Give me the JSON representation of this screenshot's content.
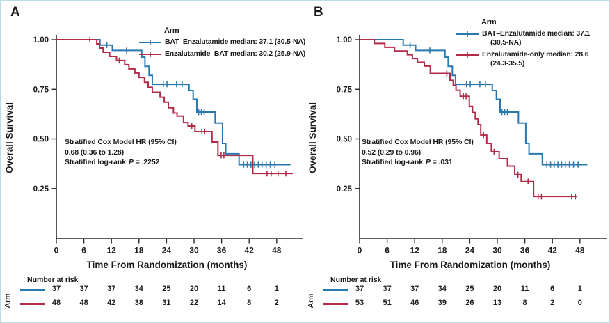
{
  "figure": {
    "border_color": "#b9dee1",
    "legend_title": "Arm",
    "risk_header": "Number at risk",
    "risk_axis_label": "Arm",
    "y_axis_label": "Overall Survival",
    "x_axis_label": "Time From Randomization (months)"
  },
  "colors": {
    "blue": "#2878ae",
    "red": "#b32a46",
    "axis": "#2a2a2a"
  },
  "panels": [
    {
      "letter": "A",
      "legend_entries": [
        {
          "color": "#2878ae",
          "lines": [
            "BAT–Enzalutamide median: 37.1 (30.5-NA)"
          ]
        },
        {
          "color": "#b32a46",
          "lines": [
            "Enzalutamide–BAT median: 30.2 (25.9-NA)"
          ]
        }
      ],
      "stats": {
        "line1": "Stratified Cox Model HR (95% CI)",
        "line2": "0.68 (0.36 to 1.28)",
        "line3_prefix": "Stratified log-rank",
        "line3_p": "P",
        "line3_value": "= .2252"
      }
    },
    {
      "letter": "B",
      "legend_entries": [
        {
          "color": "#2878ae",
          "lines": [
            "BAT–Enzalutamide median: 37.1",
            "(30.5-NA)"
          ]
        },
        {
          "color": "#b32a46",
          "lines": [
            "Enzalutamide-only median: 28.6",
            "(24.3-35.5)"
          ]
        }
      ],
      "stats": {
        "line1": "Stratified Cox Model HR (95% CI)",
        "line2": "0.52 (0.29 to 0.96)",
        "line3_prefix": "Stratified log-rank",
        "line3_p": "P",
        "line3_value": "= .031"
      }
    }
  ],
  "chart_data": [
    {
      "type": "line",
      "subtype": "kaplan-meier",
      "panel": "A",
      "xlabel": "Time From Randomization (months)",
      "ylabel": "Overall Survival",
      "xlim": [
        0,
        52
      ],
      "ylim": [
        0,
        1.0
      ],
      "x_ticks": [
        0,
        6,
        12,
        18,
        24,
        30,
        36,
        42,
        48
      ],
      "y_ticks": [
        1.0,
        0.75,
        0.5,
        0.25
      ],
      "y_tick_labels": [
        "1.00",
        "0.75",
        "0.50",
        "0.25"
      ],
      "grid": false,
      "legend_position": "top-right",
      "series": [
        {
          "name": "BAT–Enzalutamide",
          "median": "37.1 (30.5-NA)",
          "color": "#2878ae",
          "steps": [
            [
              0,
              1.0
            ],
            [
              9.5,
              0.973
            ],
            [
              12.2,
              0.946
            ],
            [
              18.6,
              0.912
            ],
            [
              19.3,
              0.866
            ],
            [
              20.2,
              0.82
            ],
            [
              20.9,
              0.775
            ],
            [
              28.9,
              0.744
            ],
            [
              29.8,
              0.7
            ],
            [
              30.6,
              0.635
            ],
            [
              34.6,
              0.58
            ],
            [
              36.2,
              0.477
            ],
            [
              36.9,
              0.425
            ],
            [
              39.8,
              0.37
            ],
            [
              51.0,
              0.37
            ]
          ],
          "censors": [
            [
              11.0,
              0.973
            ],
            [
              15.3,
              0.946
            ],
            [
              23.3,
              0.775
            ],
            [
              24.1,
              0.775
            ],
            [
              26.2,
              0.775
            ],
            [
              27.4,
              0.775
            ],
            [
              31.0,
              0.635
            ],
            [
              31.6,
              0.635
            ],
            [
              32.2,
              0.635
            ],
            [
              40.8,
              0.37
            ],
            [
              41.6,
              0.37
            ],
            [
              42.4,
              0.37
            ],
            [
              43.2,
              0.37
            ],
            [
              44.0,
              0.37
            ],
            [
              44.8,
              0.37
            ],
            [
              45.7,
              0.37
            ],
            [
              46.6,
              0.37
            ],
            [
              47.6,
              0.37
            ]
          ]
        },
        {
          "name": "Enzalutamide–BAT",
          "median": "30.2 (25.9-NA)",
          "color": "#b32a46",
          "steps": [
            [
              0,
              1.0
            ],
            [
              8.8,
              0.979
            ],
            [
              9.4,
              0.958
            ],
            [
              10.2,
              0.937
            ],
            [
              11.6,
              0.916
            ],
            [
              13.1,
              0.895
            ],
            [
              14.9,
              0.874
            ],
            [
              15.8,
              0.853
            ],
            [
              17.1,
              0.832
            ],
            [
              18.0,
              0.81
            ],
            [
              19.2,
              0.785
            ],
            [
              20.0,
              0.76
            ],
            [
              20.9,
              0.735
            ],
            [
              22.6,
              0.71
            ],
            [
              23.5,
              0.685
            ],
            [
              24.4,
              0.657
            ],
            [
              25.5,
              0.63
            ],
            [
              26.3,
              0.615
            ],
            [
              27.7,
              0.582
            ],
            [
              28.7,
              0.565
            ],
            [
              30.2,
              0.537
            ],
            [
              33.9,
              0.484
            ],
            [
              35.2,
              0.417
            ],
            [
              42.8,
              0.326
            ],
            [
              51.5,
              0.326
            ]
          ],
          "censors": [
            [
              7.3,
              1.0
            ],
            [
              13.7,
              0.895
            ],
            [
              29.5,
              0.565
            ],
            [
              31.7,
              0.537
            ],
            [
              32.3,
              0.537
            ],
            [
              35.9,
              0.417
            ],
            [
              36.5,
              0.417
            ],
            [
              45.9,
              0.326
            ],
            [
              46.8,
              0.326
            ],
            [
              48.3,
              0.326
            ],
            [
              50.0,
              0.326
            ]
          ]
        }
      ],
      "number_at_risk": {
        "months": [
          0,
          6,
          12,
          18,
          24,
          30,
          36,
          42,
          48
        ],
        "rows": [
          {
            "arm": "BAT–Enzalutamide",
            "color": "#2878ae",
            "counts": [
              37,
              37,
              37,
              34,
              25,
              20,
              11,
              6,
              1
            ]
          },
          {
            "arm": "Enzalutamide–BAT",
            "color": "#b32a46",
            "counts": [
              48,
              48,
              42,
              38,
              31,
              22,
              14,
              8,
              2
            ]
          }
        ]
      }
    },
    {
      "type": "line",
      "subtype": "kaplan-meier",
      "panel": "B",
      "xlabel": "Time From Randomization (months)",
      "ylabel": "Overall Survival",
      "xlim": [
        0,
        52
      ],
      "ylim": [
        0,
        1.0
      ],
      "x_ticks": [
        0,
        6,
        12,
        18,
        24,
        30,
        36,
        42,
        48
      ],
      "y_ticks": [
        1.0,
        0.75,
        0.5,
        0.25
      ],
      "y_tick_labels": [
        "1.00",
        "0.75",
        "0.50",
        "0.25"
      ],
      "grid": false,
      "legend_position": "top-right",
      "series": [
        {
          "name": "BAT–Enzalutamide",
          "median": "37.1 (30.5-NA)",
          "color": "#2878ae",
          "steps": [
            [
              0,
              1.0
            ],
            [
              9.5,
              0.973
            ],
            [
              12.2,
              0.946
            ],
            [
              18.6,
              0.912
            ],
            [
              19.3,
              0.866
            ],
            [
              20.2,
              0.82
            ],
            [
              20.9,
              0.775
            ],
            [
              28.9,
              0.744
            ],
            [
              29.8,
              0.7
            ],
            [
              30.6,
              0.635
            ],
            [
              34.6,
              0.58
            ],
            [
              36.2,
              0.477
            ],
            [
              36.9,
              0.425
            ],
            [
              39.8,
              0.37
            ],
            [
              49.6,
              0.37
            ]
          ],
          "censors": [
            [
              11.0,
              0.973
            ],
            [
              15.3,
              0.946
            ],
            [
              23.3,
              0.775
            ],
            [
              24.1,
              0.775
            ],
            [
              26.2,
              0.775
            ],
            [
              27.4,
              0.775
            ],
            [
              31.0,
              0.635
            ],
            [
              31.6,
              0.635
            ],
            [
              32.2,
              0.635
            ],
            [
              40.8,
              0.37
            ],
            [
              41.6,
              0.37
            ],
            [
              42.4,
              0.37
            ],
            [
              43.2,
              0.37
            ],
            [
              44.0,
              0.37
            ],
            [
              44.8,
              0.37
            ],
            [
              45.7,
              0.37
            ],
            [
              46.6,
              0.37
            ],
            [
              47.6,
              0.37
            ]
          ]
        },
        {
          "name": "Enzalutamide-only",
          "median": "28.6 (24.3-35.5)",
          "color": "#b32a46",
          "steps": [
            [
              0,
              1.0
            ],
            [
              3.2,
              0.981
            ],
            [
              5.5,
              0.962
            ],
            [
              7.6,
              0.943
            ],
            [
              10.4,
              0.924
            ],
            [
              11.5,
              0.905
            ],
            [
              12.6,
              0.886
            ],
            [
              14.1,
              0.867
            ],
            [
              15.4,
              0.83
            ],
            [
              19.7,
              0.795
            ],
            [
              20.4,
              0.77
            ],
            [
              21.0,
              0.745
            ],
            [
              21.9,
              0.715
            ],
            [
              23.9,
              0.664
            ],
            [
              24.6,
              0.633
            ],
            [
              25.2,
              0.601
            ],
            [
              25.8,
              0.572
            ],
            [
              26.4,
              0.519
            ],
            [
              27.7,
              0.477
            ],
            [
              28.7,
              0.435
            ],
            [
              30.4,
              0.4
            ],
            [
              32.2,
              0.363
            ],
            [
              33.8,
              0.32
            ],
            [
              35.2,
              0.285
            ],
            [
              37.9,
              0.21
            ],
            [
              47.3,
              0.21
            ]
          ],
          "censors": [
            [
              19.0,
              0.83
            ],
            [
              22.6,
              0.715
            ],
            [
              23.2,
              0.715
            ],
            [
              27.0,
              0.519
            ],
            [
              29.3,
              0.435
            ],
            [
              34.5,
              0.32
            ],
            [
              36.7,
              0.285
            ],
            [
              38.9,
              0.21
            ],
            [
              39.6,
              0.21
            ],
            [
              46.2,
              0.21
            ],
            [
              47.0,
              0.21
            ]
          ]
        }
      ],
      "number_at_risk": {
        "months": [
          0,
          6,
          12,
          18,
          24,
          30,
          36,
          42,
          48
        ],
        "rows": [
          {
            "arm": "BAT–Enzalutamide",
            "color": "#2878ae",
            "counts": [
              37,
              37,
              37,
              34,
              25,
              20,
              11,
              6,
              1
            ]
          },
          {
            "arm": "Enzalutamide-only",
            "color": "#b32a46",
            "counts": [
              53,
              51,
              46,
              39,
              26,
              13,
              8,
              2,
              0
            ]
          }
        ]
      }
    }
  ]
}
